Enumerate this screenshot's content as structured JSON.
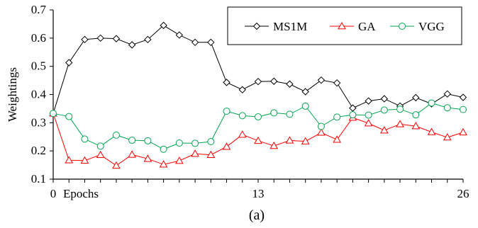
{
  "chart_data": {
    "type": "line",
    "ylabel": "Weightings",
    "xlabel": "Epochs",
    "caption": "(a)",
    "xlim": [
      0,
      26
    ],
    "ylim": [
      0.1,
      0.7
    ],
    "x_ticks": [
      0,
      13,
      26
    ],
    "y_ticks": [
      0.1,
      0.2,
      0.3,
      0.4,
      0.5,
      0.6,
      0.7
    ],
    "y_tick_labels": [
      "0.1",
      "0.2",
      "0.3",
      "0.4",
      "0.5",
      "0.6",
      "0.7"
    ],
    "x_tick_labels": [
      "0",
      "13",
      "26"
    ],
    "legend_position": "top-right",
    "grid": false,
    "x": [
      0,
      1,
      2,
      3,
      4,
      5,
      6,
      7,
      8,
      9,
      10,
      11,
      12,
      13,
      14,
      15,
      16,
      17,
      18,
      19,
      20,
      21,
      22,
      23,
      24,
      25,
      26
    ],
    "series": [
      {
        "name": "MS1M",
        "color": "#000000",
        "marker": "diamond",
        "values": [
          0.333,
          0.513,
          0.595,
          0.6,
          0.598,
          0.576,
          0.595,
          0.645,
          0.611,
          0.585,
          0.585,
          0.443,
          0.417,
          0.446,
          0.447,
          0.437,
          0.41,
          0.451,
          0.441,
          0.352,
          0.377,
          0.385,
          0.359,
          0.389,
          0.367,
          0.402,
          0.39
        ]
      },
      {
        "name": "GA",
        "color": "#ff0000",
        "marker": "triangle",
        "values": [
          0.333,
          0.167,
          0.166,
          0.186,
          0.148,
          0.187,
          0.172,
          0.152,
          0.165,
          0.19,
          0.186,
          0.215,
          0.258,
          0.236,
          0.218,
          0.237,
          0.234,
          0.265,
          0.24,
          0.318,
          0.298,
          0.273,
          0.295,
          0.288,
          0.267,
          0.248,
          0.266
        ]
      },
      {
        "name": "VGG",
        "color": "#00a650",
        "marker": "circle",
        "values": [
          0.333,
          0.322,
          0.242,
          0.217,
          0.256,
          0.238,
          0.236,
          0.206,
          0.228,
          0.227,
          0.233,
          0.341,
          0.325,
          0.321,
          0.335,
          0.33,
          0.359,
          0.287,
          0.32,
          0.328,
          0.327,
          0.345,
          0.348,
          0.328,
          0.37,
          0.353,
          0.347
        ]
      }
    ]
  }
}
